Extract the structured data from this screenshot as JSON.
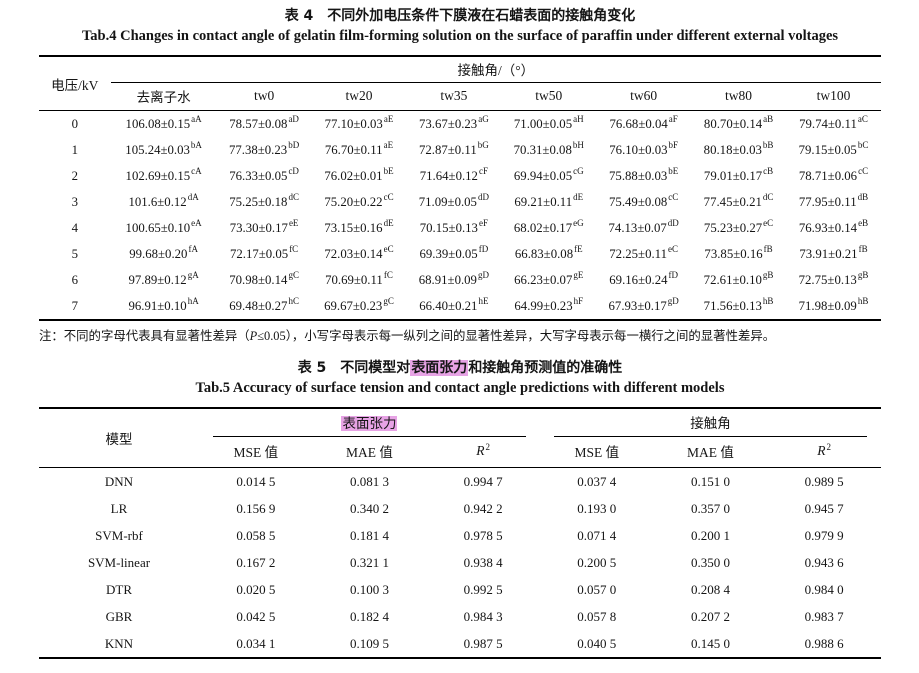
{
  "table4": {
    "title_zh": "表 4　不同外加电压条件下膜液在石蜡表面的接触角变化",
    "title_en": "Tab.4 Changes in contact angle of gelatin film-forming solution on the surface of paraffin under different external voltages",
    "col1_header": "电压/kV",
    "group_header": "接触角/（°）",
    "sub_headers": [
      "去离子水",
      "tw0",
      "tw20",
      "tw35",
      "tw50",
      "tw60",
      "tw80",
      "tw100"
    ],
    "rows": [
      {
        "voltage": "0",
        "cells": [
          [
            "106.08±0.15",
            "aA"
          ],
          [
            "78.57±0.08",
            "aD"
          ],
          [
            "77.10±0.03",
            "aE"
          ],
          [
            "73.67±0.23",
            "aG"
          ],
          [
            "71.00±0.05",
            "aH"
          ],
          [
            "76.68±0.04",
            "aF"
          ],
          [
            "80.70±0.14",
            "aB"
          ],
          [
            "79.74±0.11",
            "aC"
          ]
        ]
      },
      {
        "voltage": "1",
        "cells": [
          [
            "105.24±0.03",
            "bA"
          ],
          [
            "77.38±0.23",
            "bD"
          ],
          [
            "76.70±0.11",
            "aE"
          ],
          [
            "72.87±0.11",
            "bG"
          ],
          [
            "70.31±0.08",
            "bH"
          ],
          [
            "76.10±0.03",
            "bF"
          ],
          [
            "80.18±0.03",
            "bB"
          ],
          [
            "79.15±0.05",
            "bC"
          ]
        ]
      },
      {
        "voltage": "2",
        "cells": [
          [
            "102.69±0.15",
            "cA"
          ],
          [
            "76.33±0.05",
            "cD"
          ],
          [
            "76.02±0.01",
            "bE"
          ],
          [
            "71.64±0.12",
            "cF"
          ],
          [
            "69.94±0.05",
            "cG"
          ],
          [
            "75.88±0.03",
            "bE"
          ],
          [
            "79.01±0.17",
            "cB"
          ],
          [
            "78.71±0.06",
            "cC"
          ]
        ]
      },
      {
        "voltage": "3",
        "cells": [
          [
            "101.6±0.12",
            "dA"
          ],
          [
            "75.25±0.18",
            "dC"
          ],
          [
            "75.20±0.22",
            "cC"
          ],
          [
            "71.09±0.05",
            "dD"
          ],
          [
            "69.21±0.11",
            "dE"
          ],
          [
            "75.49±0.08",
            "cC"
          ],
          [
            "77.45±0.21",
            "dC"
          ],
          [
            "77.95±0.11",
            "dB"
          ]
        ]
      },
      {
        "voltage": "4",
        "cells": [
          [
            "100.65±0.10",
            "eA"
          ],
          [
            "73.30±0.17",
            "eE"
          ],
          [
            "73.15±0.16",
            "dE"
          ],
          [
            "70.15±0.13",
            "eF"
          ],
          [
            "68.02±0.17",
            "eG"
          ],
          [
            "74.13±0.07",
            "dD"
          ],
          [
            "75.23±0.27",
            "eC"
          ],
          [
            "76.93±0.14",
            "eB"
          ]
        ]
      },
      {
        "voltage": "5",
        "cells": [
          [
            "99.68±0.20",
            "fA"
          ],
          [
            "72.17±0.05",
            "fC"
          ],
          [
            "72.03±0.14",
            "eC"
          ],
          [
            "69.39±0.05",
            "fD"
          ],
          [
            "66.83±0.08",
            "fE"
          ],
          [
            "72.25±0.11",
            "eC"
          ],
          [
            "73.85±0.16",
            "fB"
          ],
          [
            "73.91±0.21",
            "fB"
          ]
        ]
      },
      {
        "voltage": "6",
        "cells": [
          [
            "97.89±0.12",
            "gA"
          ],
          [
            "70.98±0.14",
            "gC"
          ],
          [
            "70.69±0.11",
            "fC"
          ],
          [
            "68.91±0.09",
            "gD"
          ],
          [
            "66.23±0.07",
            "gE"
          ],
          [
            "69.16±0.24",
            "fD"
          ],
          [
            "72.61±0.10",
            "gB"
          ],
          [
            "72.75±0.13",
            "gB"
          ]
        ]
      },
      {
        "voltage": "7",
        "cells": [
          [
            "96.91±0.10",
            "hA"
          ],
          [
            "69.48±0.27",
            "hC"
          ],
          [
            "69.67±0.23",
            "gC"
          ],
          [
            "66.40±0.21",
            "hE"
          ],
          [
            "64.99±0.23",
            "hF"
          ],
          [
            "67.93±0.17",
            "gD"
          ],
          [
            "71.56±0.13",
            "hB"
          ],
          [
            "71.98±0.09",
            "hB"
          ]
        ]
      }
    ],
    "note_prefix": "注：不同的字母代表具有显著性差异（",
    "note_p": "P",
    "note_rest": "≤0.05），小写字母表示每一纵列之间的显著性差异，大写字母表示每一横行之间的显著性差异。"
  },
  "table5": {
    "title_zh_pre": "表 5　不同模型对",
    "title_zh_hl": "表面张力",
    "title_zh_post": "和接触角预测值的准确性",
    "title_en": "Tab.5 Accuracy of surface tension and contact angle predictions with different models",
    "col1_header": "模型",
    "group1": "表面张力",
    "group2": "接触角",
    "sub_mse": "MSE 值",
    "sub_mae": "MAE 值",
    "r_label": "R",
    "r_sup": "2",
    "highlight_color": "#e7a3e5",
    "rows": [
      {
        "model": "DNN",
        "values": [
          "0.014 5",
          "0.081 3",
          "0.994 7",
          "0.037 4",
          "0.151 0",
          "0.989 5"
        ]
      },
      {
        "model": "LR",
        "values": [
          "0.156 9",
          "0.340 2",
          "0.942 2",
          "0.193 0",
          "0.357 0",
          "0.945 7"
        ]
      },
      {
        "model": "SVM-rbf",
        "values": [
          "0.058 5",
          "0.181 4",
          "0.978 5",
          "0.071 4",
          "0.200 1",
          "0.979 9"
        ]
      },
      {
        "model": "SVM-linear",
        "values": [
          "0.167 2",
          "0.321 1",
          "0.938 4",
          "0.200 5",
          "0.350 0",
          "0.943 6"
        ]
      },
      {
        "model": "DTR",
        "values": [
          "0.020 5",
          "0.100 3",
          "0.992 5",
          "0.057 0",
          "0.208 4",
          "0.984 0"
        ]
      },
      {
        "model": "GBR",
        "values": [
          "0.042 5",
          "0.182 4",
          "0.984 3",
          "0.057 8",
          "0.207 2",
          "0.983 7"
        ]
      },
      {
        "model": "KNN",
        "values": [
          "0.034 1",
          "0.109 5",
          "0.987 5",
          "0.040 5",
          "0.145 0",
          "0.988 6"
        ]
      }
    ]
  }
}
